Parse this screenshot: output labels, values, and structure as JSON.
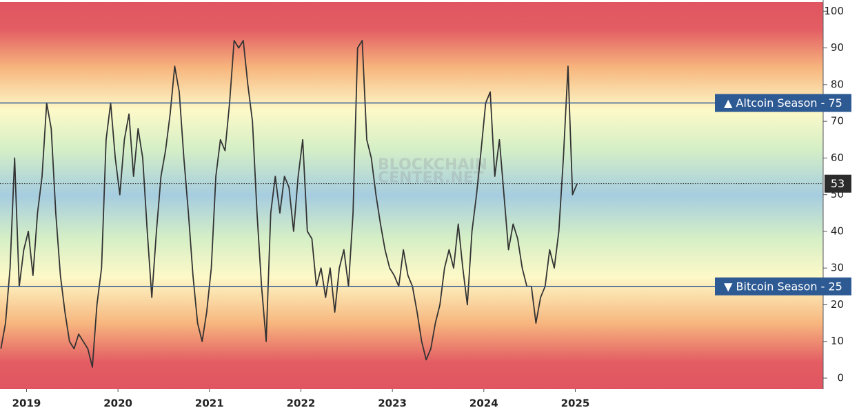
{
  "chart_data": {
    "type": "line",
    "x": [
      2018.72,
      2018.77,
      2018.82,
      2018.87,
      2018.92,
      2018.97,
      2019.02,
      2019.07,
      2019.12,
      2019.17,
      2019.22,
      2019.27,
      2019.32,
      2019.37,
      2019.42,
      2019.47,
      2019.52,
      2019.57,
      2019.62,
      2019.67,
      2019.72,
      2019.77,
      2019.82,
      2019.87,
      2019.92,
      2019.97,
      2020.02,
      2020.07,
      2020.12,
      2020.17,
      2020.22,
      2020.27,
      2020.32,
      2020.37,
      2020.42,
      2020.47,
      2020.52,
      2020.57,
      2020.62,
      2020.67,
      2020.72,
      2020.77,
      2020.82,
      2020.87,
      2020.92,
      2020.97,
      2021.02,
      2021.07,
      2021.12,
      2021.17,
      2021.22,
      2021.27,
      2021.32,
      2021.37,
      2021.42,
      2021.47,
      2021.52,
      2021.57,
      2021.62,
      2021.67,
      2021.72,
      2021.77,
      2021.82,
      2021.87,
      2021.92,
      2021.97,
      2022.02,
      2022.07,
      2022.12,
      2022.17,
      2022.22,
      2022.27,
      2022.32,
      2022.37,
      2022.42,
      2022.47,
      2022.52,
      2022.57,
      2022.62,
      2022.67,
      2022.72,
      2022.77,
      2022.82,
      2022.87,
      2022.92,
      2022.97,
      2023.02,
      2023.07,
      2023.12,
      2023.17,
      2023.22,
      2023.27,
      2023.32,
      2023.37,
      2023.42,
      2023.47,
      2023.52,
      2023.57,
      2023.62,
      2023.67,
      2023.72,
      2023.77,
      2023.82,
      2023.87,
      2023.92,
      2023.97,
      2024.02,
      2024.07,
      2024.12,
      2024.17,
      2024.22,
      2024.27,
      2024.32,
      2024.37,
      2024.42,
      2024.47,
      2024.52,
      2024.57,
      2024.62,
      2024.67,
      2024.72,
      2024.77,
      2024.82,
      2024.87,
      2024.92,
      2024.97,
      2025.02
    ],
    "series": [
      {
        "color": "#333333",
        "values": [
          8,
          15,
          30,
          60,
          25,
          35,
          40,
          28,
          45,
          55,
          75,
          68,
          45,
          28,
          18,
          10,
          8,
          12,
          10,
          8,
          3,
          20,
          30,
          65,
          75,
          60,
          50,
          65,
          72,
          55,
          68,
          60,
          40,
          22,
          40,
          55,
          62,
          72,
          85,
          78,
          60,
          45,
          28,
          15,
          10,
          18,
          30,
          55,
          65,
          62,
          75,
          92,
          90,
          92,
          80,
          70,
          45,
          25,
          10,
          45,
          55,
          45,
          55,
          52,
          40,
          55,
          65,
          40,
          38,
          25,
          30,
          22,
          30,
          18,
          30,
          35,
          25,
          45,
          90,
          92,
          65,
          60,
          50,
          42,
          35,
          30,
          28,
          25,
          35,
          28,
          25,
          18,
          10,
          5,
          8,
          15,
          20,
          30,
          35,
          30,
          42,
          30,
          20,
          40,
          50,
          62,
          75,
          78,
          55,
          65,
          50,
          35,
          42,
          38,
          30,
          25,
          25,
          15,
          22,
          25,
          35,
          30,
          40,
          60,
          85,
          50,
          53
        ]
      }
    ],
    "xlim": [
      2018.71,
      2027.71
    ],
    "xticks": [
      2019,
      2020,
      2021,
      2022,
      2023,
      2024,
      2025
    ],
    "ylim": [
      -3,
      102.5
    ],
    "yticks": [
      0,
      10,
      20,
      30,
      40,
      50,
      60,
      70,
      80,
      90,
      100
    ],
    "reference_lines": [
      {
        "value": 75,
        "label": "▲ Altcoin Season - 75"
      },
      {
        "value": 25,
        "label": "▼ Bitcoin Season - 25"
      }
    ],
    "current_value": 53,
    "watermark": [
      "BLOCKCHAIN",
      "CENTER.NET"
    ]
  }
}
